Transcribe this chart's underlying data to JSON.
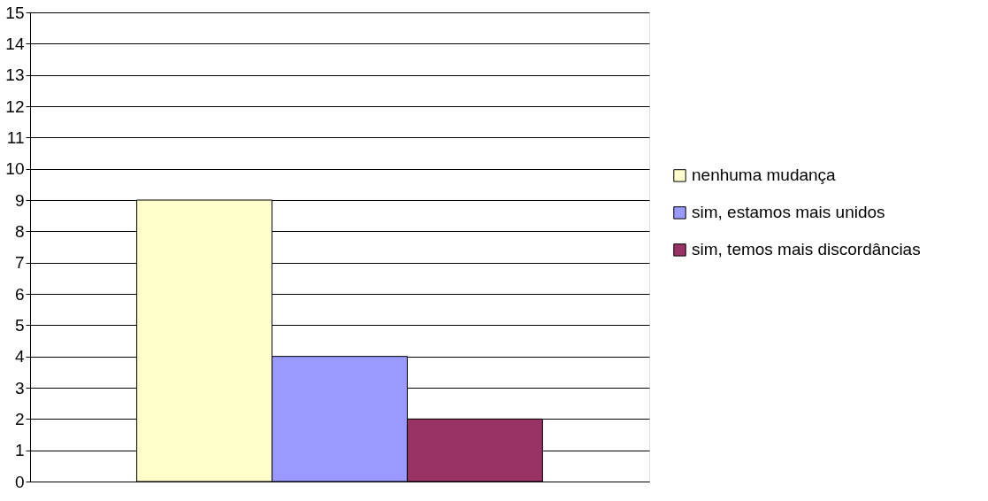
{
  "chart_data": {
    "type": "bar",
    "categories": [
      null
    ],
    "series": [
      {
        "name": "nenhuma mudança",
        "color": "#ffffcc",
        "values": [
          9
        ]
      },
      {
        "name": "sim, estamos mais unidos",
        "color": "#9999ff",
        "values": [
          4
        ]
      },
      {
        "name": "sim, temos mais discordâncias",
        "color": "#993366",
        "values": [
          2
        ]
      }
    ],
    "ylim": [
      0,
      15
    ],
    "yticks": [
      0,
      1,
      2,
      3,
      4,
      5,
      6,
      7,
      8,
      9,
      10,
      11,
      12,
      13,
      14,
      15
    ],
    "grid": "y",
    "legend": "right",
    "tick_labels": "y"
  }
}
